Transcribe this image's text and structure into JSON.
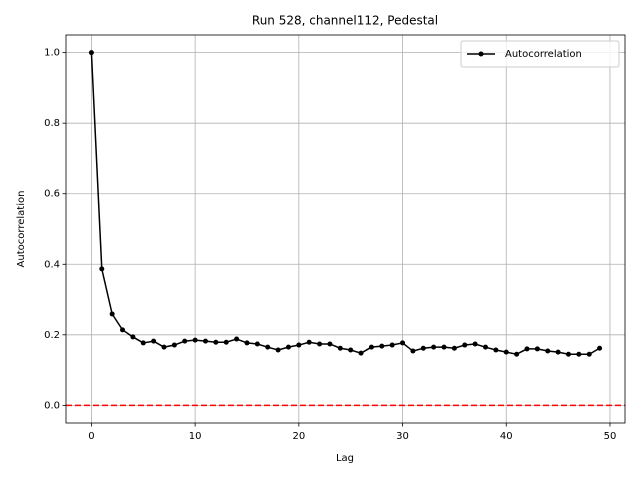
{
  "chart_data": {
    "type": "line",
    "title": "Run 528, channel112, Pedestal",
    "xlabel": "Lag",
    "ylabel": "Autocorrelation",
    "x": [
      0,
      1,
      2,
      3,
      4,
      5,
      6,
      7,
      8,
      9,
      10,
      11,
      12,
      13,
      14,
      15,
      16,
      17,
      18,
      19,
      20,
      21,
      22,
      23,
      24,
      25,
      26,
      27,
      28,
      29,
      30,
      31,
      32,
      33,
      34,
      35,
      36,
      37,
      38,
      39,
      40,
      41,
      42,
      43,
      44,
      45,
      46,
      47,
      48,
      49
    ],
    "series": [
      {
        "name": "Autocorrelation",
        "color": "#000000",
        "values": [
          1.0,
          0.387,
          0.259,
          0.214,
          0.194,
          0.177,
          0.182,
          0.165,
          0.171,
          0.182,
          0.185,
          0.182,
          0.179,
          0.179,
          0.188,
          0.177,
          0.174,
          0.165,
          0.157,
          0.165,
          0.171,
          0.179,
          0.174,
          0.174,
          0.162,
          0.157,
          0.148,
          0.165,
          0.168,
          0.171,
          0.177,
          0.154,
          0.162,
          0.165,
          0.165,
          0.162,
          0.171,
          0.174,
          0.165,
          0.157,
          0.151,
          0.145,
          0.16,
          0.16,
          0.154,
          0.151,
          0.145,
          0.145,
          0.145,
          0.162
        ]
      }
    ],
    "hline": {
      "value": 0,
      "color": "#ff0000"
    },
    "xlim": [
      -2.45,
      51.45
    ],
    "xticks": [
      0,
      10,
      20,
      30,
      40,
      50
    ],
    "ylim": [
      -0.05,
      1.05
    ],
    "yticks": [
      {
        "value": 0,
        "label": "0.0"
      },
      0.2,
      0.4,
      0.6,
      0.8,
      {
        "value": 1,
        "label": "1.0"
      }
    ],
    "grid": true,
    "legend": "upper right"
  }
}
